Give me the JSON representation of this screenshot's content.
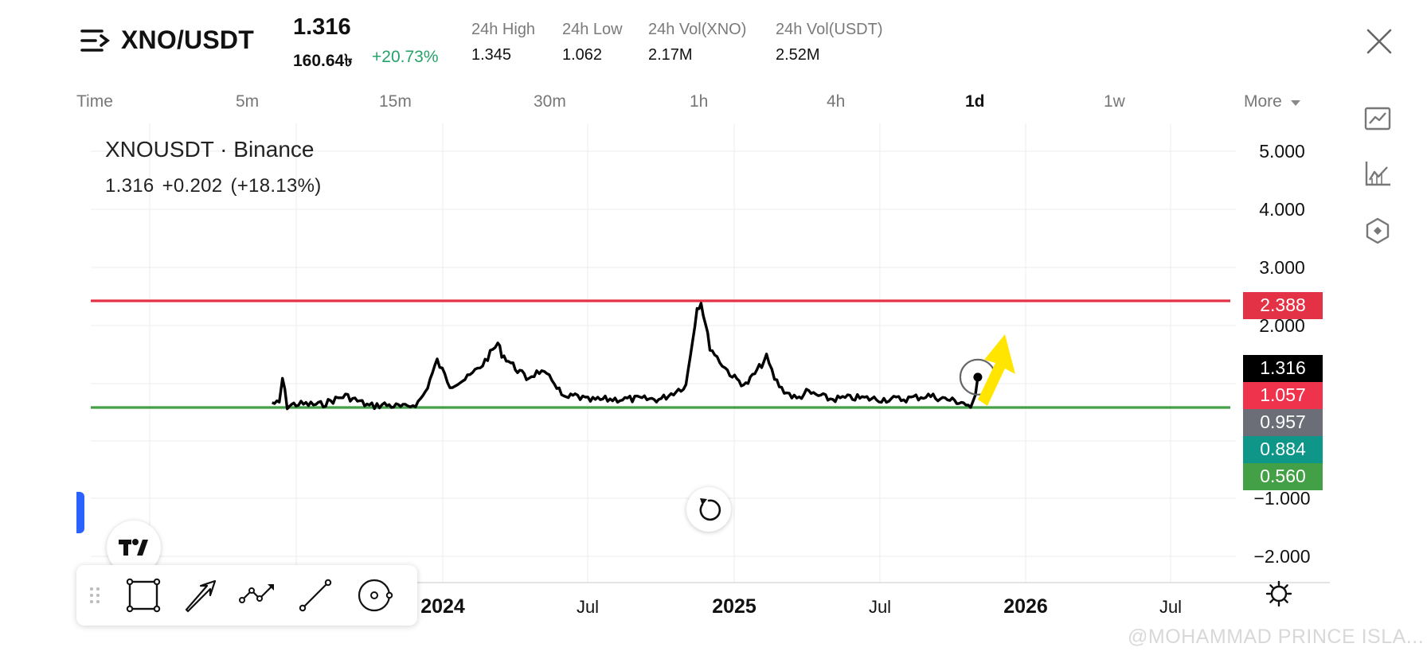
{
  "header": {
    "pair": "XNO/USDT",
    "last_price": "1.316",
    "last_price_local": "160.64৳",
    "change_pct": "+20.73%",
    "stats": [
      {
        "label": "24h High",
        "value": "1.345"
      },
      {
        "label": "24h Low",
        "value": "1.062"
      },
      {
        "label": "24h Vol(XNO)",
        "value": "2.17M"
      },
      {
        "label": "24h Vol(USDT)",
        "value": "2.52M"
      }
    ]
  },
  "timeframes": {
    "items": [
      "Time",
      "5m",
      "15m",
      "30m",
      "1h",
      "4h",
      "1d",
      "1w",
      "More"
    ],
    "active": "1d"
  },
  "legend": {
    "title": "XNOUSDT · Binance",
    "price": "1.316",
    "change": "+0.202",
    "change_pct": "(+18.13%)"
  },
  "chart_data": {
    "type": "line",
    "symbol": "XNOUSDT",
    "x_ticks": [
      "2024",
      "Jul",
      "2025",
      "Jul",
      "2026",
      "Jul"
    ],
    "y_ticks": [
      "5.000",
      "4.000",
      "3.000",
      "2.000",
      "−1.000",
      "−2.000"
    ],
    "series": [
      {
        "x": [
          "2023-06-01",
          "2023-06-10",
          "2023-06-14",
          "2023-06-20",
          "2023-07-01",
          "2023-08-01",
          "2023-09-01",
          "2023-10-01",
          "2023-10-20",
          "2023-11-15",
          "2023-12-01",
          "2023-12-10",
          "2023-12-25",
          "2024-01-10",
          "2024-02-01",
          "2024-02-20",
          "2024-03-10",
          "2024-03-15",
          "2024-04-01",
          "2024-04-15",
          "2024-05-01",
          "2024-05-20",
          "2024-06-01",
          "2024-06-15",
          "2024-07-01",
          "2024-08-01",
          "2024-09-01",
          "2024-10-01",
          "2024-11-01",
          "2024-11-15",
          "2024-11-20",
          "2024-12-01",
          "2024-12-10",
          "2024-12-20",
          "2025-01-01",
          "2025-01-15",
          "2025-02-01",
          "2025-02-10",
          "2025-02-20",
          "2025-03-01",
          "2025-03-20",
          "2025-04-01",
          "2025-05-01",
          "2025-06-01",
          "2025-07-01",
          "2025-08-01",
          "2025-09-01",
          "2025-10-01",
          "2025-10-15",
          "2025-10-24",
          "2025-10-30",
          "2025-11-02"
        ],
        "y": [
          0.95,
          0.93,
          1.3,
          0.9,
          0.93,
          0.92,
          1.05,
          0.9,
          0.92,
          0.88,
          0.95,
          1.1,
          1.55,
          1.2,
          1.3,
          1.5,
          1.8,
          1.65,
          1.45,
          1.3,
          1.4,
          1.25,
          1.0,
          1.05,
          0.98,
          1.0,
          1.0,
          1.0,
          1.2,
          2.3,
          2.4,
          1.75,
          1.6,
          1.45,
          1.3,
          1.2,
          1.45,
          1.6,
          1.3,
          1.15,
          1.0,
          1.1,
          1.0,
          1.02,
          1.0,
          1.0,
          1.05,
          0.98,
          0.95,
          0.88,
          1.06,
          1.316
        ]
      }
    ],
    "levels": [
      {
        "value": 2.388,
        "label": "2.388",
        "color": "#e33245"
      },
      {
        "value": 1.316,
        "label": "1.316",
        "color": "#000000"
      },
      {
        "value": 1.057,
        "label": "1.057",
        "color": "#f0334c"
      },
      {
        "value": 0.957,
        "label": "0.957",
        "color": "#6b6e76"
      },
      {
        "value": 0.884,
        "label": "0.884",
        "color": "#0e9688"
      },
      {
        "value": 0.56,
        "label": "0.560",
        "color": "#43a047"
      }
    ],
    "horizontal_lines": [
      {
        "value": 2.388,
        "color": "#e33245"
      },
      {
        "value": 0.88,
        "color": "#43a047"
      }
    ]
  },
  "colors": {
    "up": "#26a269",
    "red_line": "#e33245",
    "green_line": "#43a047",
    "arrow": "#ffe500",
    "active_tab": "#111111"
  },
  "icons": {
    "menu": "menu-icon",
    "close": "close-icon",
    "chart_line": "line-chart-icon",
    "chart_area": "area-chart-icon",
    "indicator": "indicator-icon",
    "reset": "reset-icon",
    "rectangle": "rectangle-tool-icon",
    "arrow": "arrow-tool-icon",
    "path": "path-tool-icon",
    "trendline": "trendline-tool-icon",
    "circle": "circle-tool-icon",
    "settings": "settings-icon"
  },
  "watermark": "@MOHAMMAD PRINCE ISLA..."
}
